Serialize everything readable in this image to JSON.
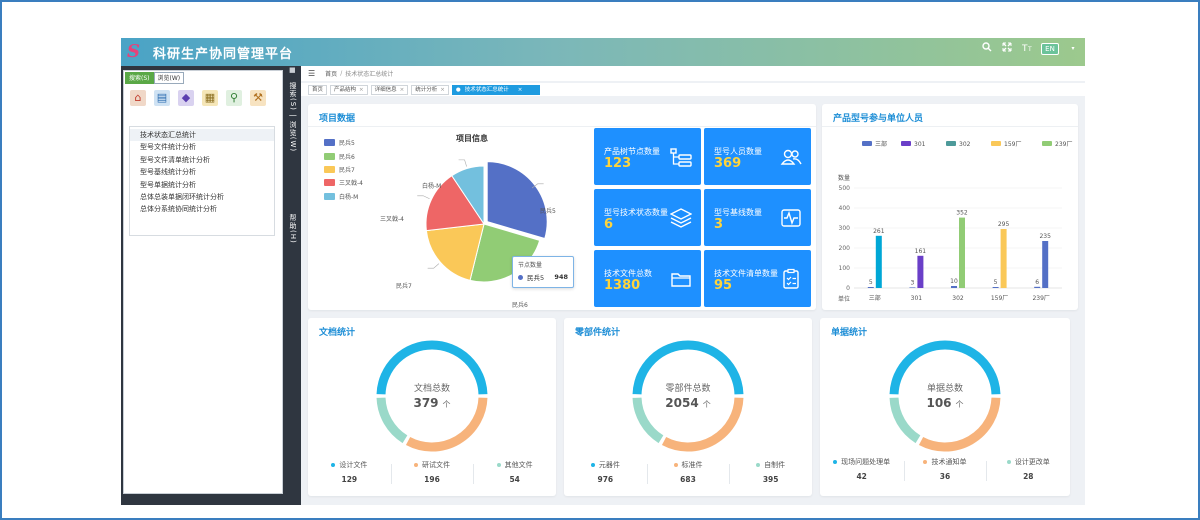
{
  "header": {
    "logo_text": "S",
    "title": "科研生产协同管理平台",
    "badge": "EN"
  },
  "left": {
    "tabs": [
      {
        "label": "搜索(S)"
      },
      {
        "label": "浏览(W)"
      }
    ],
    "tree_items": [
      "技术状态汇总统计",
      "型号文件统计分析",
      "型号文件清单统计分析",
      "型号基线统计分析",
      "型号单据统计分析",
      "总体总装单据闭环统计分析",
      "总体分系统协同统计分析"
    ],
    "strip": {
      "text1": "搜索(S) | 浏览(W)",
      "text2": "帮助(H)"
    }
  },
  "breadcrumb": {
    "home": "首页",
    "current": "技术状态汇总统计"
  },
  "tabs": [
    {
      "label": "首页"
    },
    {
      "label": "产品结构"
    },
    {
      "label": "详细信息"
    },
    {
      "label": "统计分析"
    },
    {
      "label": "技术状态汇总统计"
    }
  ],
  "project": {
    "title": "项目数据",
    "pie_title": "项目信息",
    "tooltip": {
      "title": "节点数量",
      "name": "民兵5",
      "value": "948"
    }
  },
  "tiles": [
    {
      "label": "产品树节点数量",
      "value": "123",
      "icon": "tree-icon"
    },
    {
      "label": "型号人员数量",
      "value": "369",
      "icon": "people-icon"
    },
    {
      "label": "型号技术状态数量",
      "value": "6",
      "icon": "layers-icon"
    },
    {
      "label": "型号基线数量",
      "value": "3",
      "icon": "baseline-icon"
    },
    {
      "label": "技术文件总数",
      "value": "1380",
      "icon": "folder-icon"
    },
    {
      "label": "技术文件清单数量",
      "value": "95",
      "icon": "checklist-icon"
    }
  ],
  "bar_card": {
    "title": "产品型号参与单位人员",
    "y_name": "数量",
    "x_name": "单位"
  },
  "doc": {
    "title": "文档统计",
    "center_label": "文档总数",
    "total": "379",
    "unit": "个",
    "items": [
      {
        "name": "设计文件",
        "value": "129"
      },
      {
        "name": "研试文件",
        "value": "196"
      },
      {
        "name": "其他文件",
        "value": "54"
      }
    ]
  },
  "parts": {
    "title": "零部件统计",
    "center_label": "零部件总数",
    "total": "2054",
    "unit": "个",
    "items": [
      {
        "name": "元器件",
        "value": "976"
      },
      {
        "name": "标准件",
        "value": "683"
      },
      {
        "name": "自制件",
        "value": "395"
      }
    ]
  },
  "bills": {
    "title": "单据统计",
    "center_label": "单据总数",
    "total": "106",
    "unit": "个",
    "items": [
      {
        "name": "现场问题处理单",
        "value": "42"
      },
      {
        "name": "技术通知单",
        "value": "36"
      },
      {
        "name": "设计更改单",
        "value": "28"
      }
    ]
  },
  "colors": {
    "accent": "#1e90ff",
    "donut_top": "#1eb4e6",
    "donut_right": "#f7b37b",
    "donut_left": "#9ad9c9"
  },
  "chart_data": [
    {
      "type": "pie",
      "title": "项目信息",
      "series": [
        {
          "name": "民兵5",
          "value": 948,
          "color": "#5470c6"
        },
        {
          "name": "民兵6",
          "value": 780,
          "color": "#91cc75"
        },
        {
          "name": "民兵7",
          "value": 620,
          "color": "#fac858"
        },
        {
          "name": "三叉戟-4",
          "value": 560,
          "color": "#ee6666"
        },
        {
          "name": "白杨-M",
          "value": 300,
          "color": "#73c0de"
        }
      ],
      "legend": "top-left"
    },
    {
      "type": "bar",
      "title": "产品型号参与单位人员",
      "categories": [
        "三部",
        "301",
        "302",
        "159厂",
        "239厂"
      ],
      "series": [
        {
          "name": "三部",
          "color": "#5470c6",
          "values": [
            5,
            3,
            10,
            5,
            6
          ]
        },
        {
          "name": "301",
          "color": "#00a7d6",
          "values": [
            261,
            161,
            352,
            295,
            235
          ]
        }
      ],
      "legend_series": [
        {
          "name": "三部",
          "color": "#5470c6"
        },
        {
          "name": "301",
          "color": "#6a3fc8"
        },
        {
          "name": "302",
          "color": "#4d9a9a"
        },
        {
          "name": "159厂",
          "color": "#fac858"
        },
        {
          "name": "239厂",
          "color": "#91cc75"
        }
      ],
      "tall_bar_colors": [
        "#00a7d6",
        "#6a3fc8",
        "#91cc75",
        "#fac858",
        "#5470c6"
      ],
      "ylabel": "数量",
      "xlabel": "单位",
      "ylim": [
        0,
        500
      ],
      "yticks": [
        0,
        100,
        200,
        300,
        400,
        500
      ],
      "legend": "top",
      "grid": true
    }
  ]
}
